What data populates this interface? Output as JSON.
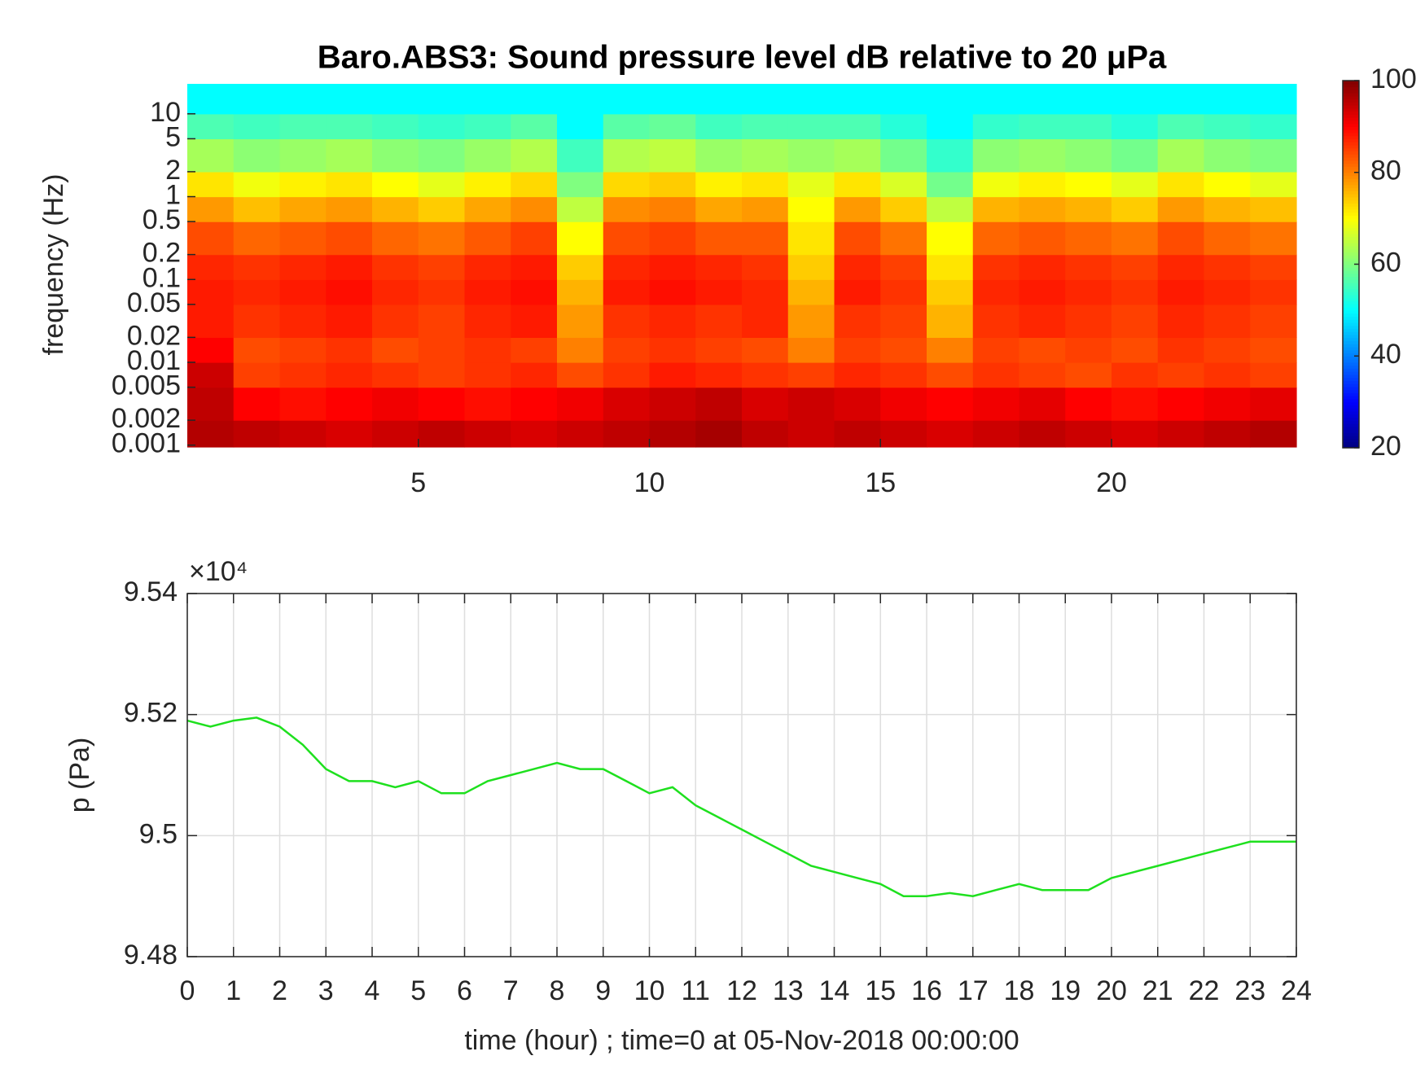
{
  "chart_data": [
    {
      "type": "heatmap",
      "title": "Baro.ABS3: Sound pressure level dB relative to 20 μPa",
      "ylabel": "frequency (Hz)",
      "ylog": true,
      "colormap": "jet",
      "xlim": [
        0,
        24
      ],
      "xticks": [
        5,
        10,
        15,
        20
      ],
      "ylim": [
        0.00095,
        23
      ],
      "yticks": [
        0.001,
        0.002,
        0.005,
        0.01,
        0.02,
        0.05,
        0.1,
        0.2,
        0.5,
        1,
        2,
        5,
        10
      ],
      "clim": [
        20,
        100
      ],
      "cticks": [
        20,
        40,
        60,
        80,
        100
      ],
      "x_edges": [
        0,
        1,
        2,
        3,
        4,
        5,
        6,
        7,
        8,
        9,
        10,
        11,
        12,
        13,
        14,
        15,
        16,
        17,
        18,
        19,
        20,
        21,
        22,
        23,
        24
      ],
      "y_edges": [
        0.00095,
        0.002,
        0.005,
        0.01,
        0.02,
        0.05,
        0.1,
        0.2,
        0.5,
        1,
        2,
        5,
        10,
        23
      ],
      "z": [
        [
          96,
          95,
          94,
          93,
          94,
          95,
          94,
          93,
          94,
          95,
          96,
          97,
          95,
          94,
          95,
          94,
          93,
          94,
          95,
          94,
          93,
          94,
          95,
          96
        ],
        [
          95,
          90,
          89,
          90,
          91,
          90,
          89,
          90,
          91,
          93,
          94,
          95,
          93,
          94,
          93,
          91,
          90,
          91,
          92,
          90,
          89,
          90,
          91,
          92
        ],
        [
          94,
          85,
          86,
          87,
          86,
          85,
          86,
          87,
          84,
          86,
          88,
          87,
          86,
          85,
          87,
          86,
          84,
          86,
          85,
          84,
          86,
          85,
          86,
          85
        ],
        [
          90,
          84,
          85,
          86,
          84,
          85,
          86,
          85,
          80,
          85,
          86,
          85,
          84,
          80,
          85,
          84,
          80,
          85,
          84,
          85,
          84,
          86,
          85,
          84
        ],
        [
          88,
          86,
          87,
          88,
          86,
          85,
          87,
          88,
          78,
          86,
          87,
          86,
          87,
          78,
          86,
          85,
          76,
          86,
          87,
          86,
          85,
          87,
          86,
          85
        ],
        [
          88,
          87,
          88,
          89,
          87,
          86,
          88,
          89,
          76,
          88,
          89,
          88,
          87,
          76,
          88,
          86,
          74,
          87,
          88,
          87,
          86,
          88,
          87,
          86
        ],
        [
          87,
          86,
          87,
          88,
          86,
          85,
          87,
          88,
          74,
          87,
          88,
          87,
          86,
          74,
          87,
          85,
          72,
          86,
          87,
          86,
          85,
          87,
          86,
          85
        ],
        [
          84,
          82,
          83,
          84,
          82,
          81,
          83,
          85,
          70,
          84,
          85,
          83,
          83,
          72,
          84,
          81,
          70,
          82,
          83,
          82,
          81,
          84,
          82,
          81
        ],
        [
          78,
          75,
          77,
          78,
          76,
          74,
          77,
          79,
          65,
          79,
          80,
          77,
          78,
          70,
          78,
          74,
          65,
          76,
          77,
          76,
          74,
          78,
          76,
          75
        ],
        [
          72,
          69,
          71,
          72,
          70,
          68,
          71,
          73,
          60,
          73,
          74,
          71,
          72,
          68,
          72,
          67,
          59,
          69,
          71,
          70,
          68,
          72,
          70,
          68
        ],
        [
          63,
          61,
          62,
          63,
          61,
          60,
          62,
          64,
          55,
          64,
          65,
          62,
          63,
          62,
          63,
          59,
          54,
          61,
          62,
          61,
          59,
          63,
          61,
          60
        ],
        [
          56,
          55,
          56,
          56,
          55,
          54,
          55,
          57,
          50,
          57,
          58,
          55,
          56,
          56,
          56,
          53,
          50,
          54,
          55,
          55,
          53,
          56,
          55,
          54
        ],
        [
          50,
          50,
          50,
          50,
          50,
          50,
          50,
          50,
          50,
          50,
          50,
          50,
          50,
          50,
          50,
          50,
          50,
          50,
          50,
          50,
          50,
          50,
          50,
          50
        ]
      ]
    },
    {
      "type": "line",
      "xlabel": "time (hour) ; time=0 at 05-Nov-2018 00:00:00",
      "ylabel": "p (Pa)",
      "y_exponent": "×10⁴",
      "grid": true,
      "color": "#1ee01e",
      "xlim": [
        0,
        24
      ],
      "xticks": [
        0,
        1,
        2,
        3,
        4,
        5,
        6,
        7,
        8,
        9,
        10,
        11,
        12,
        13,
        14,
        15,
        16,
        17,
        18,
        19,
        20,
        21,
        22,
        23,
        24
      ],
      "ylim": [
        9.48,
        9.54
      ],
      "yticks": [
        9.48,
        9.5,
        9.52,
        9.54
      ],
      "x": [
        0,
        0.5,
        1,
        1.5,
        2,
        2.5,
        3,
        3.5,
        4,
        4.5,
        5,
        5.5,
        6,
        6.5,
        7,
        7.5,
        8,
        8.5,
        9,
        9.5,
        10,
        10.5,
        11,
        11.5,
        12,
        12.5,
        13,
        13.5,
        14,
        14.5,
        15,
        15.5,
        16,
        16.5,
        17,
        17.5,
        18,
        18.5,
        19,
        19.5,
        20,
        20.5,
        21,
        21.5,
        22,
        22.5,
        23,
        23.5,
        24
      ],
      "values": [
        9.519,
        9.518,
        9.519,
        9.5195,
        9.518,
        9.515,
        9.511,
        9.509,
        9.509,
        9.508,
        9.509,
        9.507,
        9.507,
        9.509,
        9.51,
        9.511,
        9.512,
        9.511,
        9.511,
        9.509,
        9.507,
        9.508,
        9.505,
        9.503,
        9.501,
        9.499,
        9.497,
        9.495,
        9.494,
        9.493,
        9.492,
        9.49,
        9.49,
        9.4905,
        9.49,
        9.491,
        9.492,
        9.491,
        9.491,
        9.491,
        9.493,
        9.494,
        9.495,
        9.496,
        9.497,
        9.498,
        9.499,
        9.499,
        9.499
      ]
    }
  ]
}
